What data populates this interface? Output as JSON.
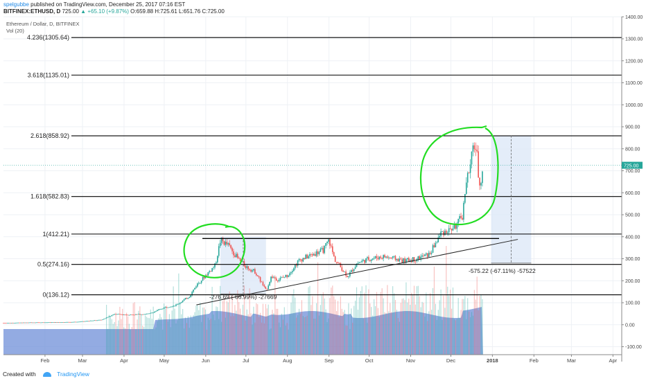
{
  "header": {
    "author": "spelgubbe",
    "published": "published on TradingView.com, December 25, 2017 07:16 EST",
    "symbol": "BITFINEX:ETHUSD, D",
    "last": "725.00",
    "change": "+65.10 (+9.87%)",
    "ohlc": "O:659.88 H:725.61 L:651.76 C:725.00"
  },
  "legend": {
    "title": "Ethereum / Dollar, D, BITFINEX",
    "indicator": "Vol (20)"
  },
  "footer": {
    "created_with": "Created with",
    "brand": "TradingView"
  },
  "colors": {
    "up": "#26a69a",
    "down": "#ef5350",
    "volume_ma": "#6f8fd8",
    "range_box": "#dde9f8",
    "annotation": "#22dd22"
  },
  "chart_data": {
    "type": "candlestick",
    "price_axis": {
      "min": -100,
      "max": 1400,
      "ticks": [
        -100,
        0,
        100,
        200,
        300,
        400,
        500,
        600,
        700,
        800,
        900,
        1000,
        1100,
        1200,
        1300,
        1400
      ],
      "tick_labels": [
        "-100.00",
        "0.00",
        "100.00",
        "200.00",
        "300.00",
        "400.00",
        "500.00",
        "600.00",
        "700.00",
        "800.00",
        "900.00",
        "1000.00",
        "1100.00",
        "1200.00",
        "1300.00",
        "1400.00"
      ],
      "current_price_label": "725.00",
      "current_price": 725
    },
    "time_axis": {
      "labels": [
        "Feb",
        "Mar",
        "Apr",
        "May",
        "Jun",
        "Jul",
        "Aug",
        "Sep",
        "Oct",
        "Nov",
        "Dec",
        "2018",
        "Feb",
        "Mar",
        "Apr"
      ],
      "dates": [
        "2017-02-01",
        "2017-03-01",
        "2017-04-01",
        "2017-05-01",
        "2017-06-01",
        "2017-07-01",
        "2017-08-01",
        "2017-09-01",
        "2017-10-01",
        "2017-11-01",
        "2017-12-01",
        "2018-01-01",
        "2018-02-01",
        "2018-03-01",
        "2018-04-01"
      ]
    },
    "price_path": [
      [
        "2017-01-01",
        8
      ],
      [
        "2017-01-20",
        10
      ],
      [
        "2017-02-10",
        11
      ],
      [
        "2017-02-25",
        13
      ],
      [
        "2017-03-05",
        17
      ],
      [
        "2017-03-15",
        22
      ],
      [
        "2017-03-25",
        48
      ],
      [
        "2017-04-05",
        45
      ],
      [
        "2017-04-20",
        50
      ],
      [
        "2017-05-01",
        78
      ],
      [
        "2017-05-10",
        90
      ],
      [
        "2017-05-20",
        130
      ],
      [
        "2017-05-25",
        180
      ],
      [
        "2017-06-01",
        225
      ],
      [
        "2017-06-08",
        270
      ],
      [
        "2017-06-12",
        385
      ],
      [
        "2017-06-18",
        360
      ],
      [
        "2017-06-25",
        300
      ],
      [
        "2017-07-01",
        265
      ],
      [
        "2017-07-08",
        240
      ],
      [
        "2017-07-16",
        155
      ],
      [
        "2017-07-20",
        220
      ],
      [
        "2017-07-25",
        205
      ],
      [
        "2017-08-01",
        225
      ],
      [
        "2017-08-10",
        295
      ],
      [
        "2017-08-20",
        320
      ],
      [
        "2017-08-28",
        340
      ],
      [
        "2017-09-01",
        385
      ],
      [
        "2017-09-05",
        300
      ],
      [
        "2017-09-15",
        220
      ],
      [
        "2017-09-22",
        280
      ],
      [
        "2017-10-01",
        300
      ],
      [
        "2017-10-12",
        310
      ],
      [
        "2017-10-20",
        300
      ],
      [
        "2017-10-28",
        290
      ],
      [
        "2017-11-05",
        300
      ],
      [
        "2017-11-15",
        320
      ],
      [
        "2017-11-24",
        420
      ],
      [
        "2017-11-30",
        430
      ],
      [
        "2017-12-05",
        450
      ],
      [
        "2017-12-10",
        500
      ],
      [
        "2017-12-12",
        650
      ],
      [
        "2017-12-15",
        700
      ],
      [
        "2017-12-18",
        820
      ],
      [
        "2017-12-20",
        800
      ],
      [
        "2017-12-22",
        650
      ],
      [
        "2017-12-24",
        660
      ],
      [
        "2017-12-25",
        725
      ]
    ],
    "volume_panel_ticks": [
      "0.00",
      "-100.00"
    ],
    "fib_levels": [
      {
        "label": "4.236(1305.64)",
        "price": 1305.64
      },
      {
        "label": "3.618(1135.01)",
        "price": 1135.01
      },
      {
        "label": "2.618(858.92)",
        "price": 858.92
      },
      {
        "label": "1.618(582.83)",
        "price": 582.83
      },
      {
        "label": "1(412.21)",
        "price": 412.21
      },
      {
        "label": "0.5(274.16)",
        "price": 274.16
      },
      {
        "label": "0(136.12)",
        "price": 136.12
      }
    ],
    "trendline": {
      "from": [
        "2017-05-25",
        90
      ],
      "to": [
        "2018-01-20",
        388
      ]
    },
    "measurements": [
      {
        "label": "-276.69 (-66.99%) -27669",
        "from": [
          "2017-06-12",
          400
        ],
        "to": [
          "2017-07-16",
          140
        ]
      },
      {
        "label": "-575.22 (-67.11%) -57522",
        "from": [
          "2017-12-31",
          860
        ],
        "to": [
          "2018-01-30",
          280
        ]
      }
    ],
    "annotations": [
      {
        "type": "hand-drawn-circle",
        "around": [
          "2017-06-15",
          300
        ]
      },
      {
        "type": "hand-drawn-circle",
        "around": [
          "2017-12-15",
          640
        ]
      }
    ]
  }
}
